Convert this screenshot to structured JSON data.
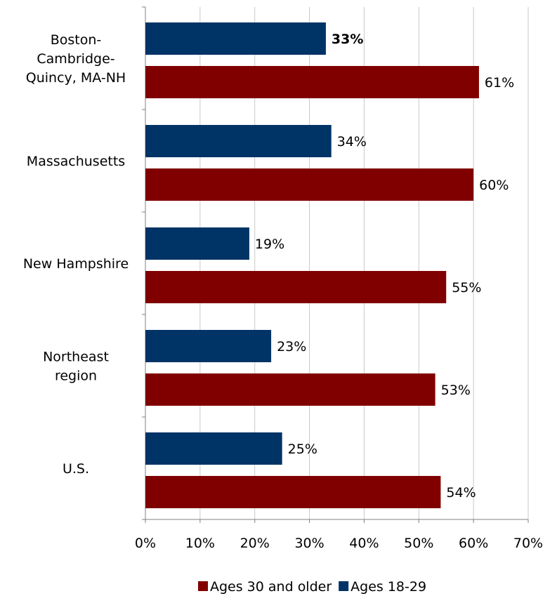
{
  "chart_data": {
    "type": "bar",
    "orientation": "horizontal",
    "categories": [
      [
        "Boston-",
        "Cambridge-",
        "Quincy, MA-NH"
      ],
      [
        "Massachusetts"
      ],
      [
        "New Hampshire"
      ],
      [
        "Northeast",
        "region"
      ],
      [
        "U.S."
      ]
    ],
    "series": [
      {
        "name": "Ages 18-29",
        "color": "#003366",
        "values": [
          33,
          34,
          19,
          23,
          25
        ],
        "labels": [
          "33%",
          "34%",
          "19%",
          "23%",
          "25%"
        ],
        "bold_label_index": [
          0
        ]
      },
      {
        "name": "Ages 30 and older",
        "color": "#800000",
        "values": [
          61,
          60,
          55,
          53,
          54
        ],
        "labels": [
          "61%",
          "60%",
          "55%",
          "53%",
          "54%"
        ],
        "bold_label_index": []
      }
    ],
    "x_ticks": [
      "0%",
      "10%",
      "20%",
      "30%",
      "40%",
      "50%",
      "60%",
      "70%"
    ],
    "xlim": [
      0,
      70
    ],
    "grid": true,
    "legend": {
      "placement": "bottom",
      "items": [
        {
          "name": "Ages 30 and older",
          "color": "#800000"
        },
        {
          "name": "Ages 18-29",
          "color": "#003366"
        }
      ]
    },
    "title": "",
    "xlabel": "",
    "ylabel": ""
  }
}
